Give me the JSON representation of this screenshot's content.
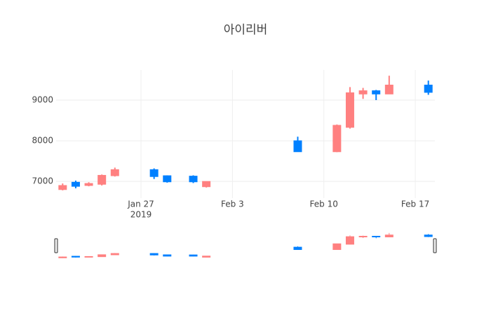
{
  "chart_data": {
    "type": "candlestick",
    "title": "아이리버",
    "x": [
      "2019-01-21",
      "2019-01-22",
      "2019-01-23",
      "2019-01-24",
      "2019-01-25",
      "2019-01-28",
      "2019-01-29",
      "2019-01-31",
      "2019-02-01",
      "2019-02-08",
      "2019-02-11",
      "2019-02-12",
      "2019-02-13",
      "2019-02-14",
      "2019-02-15",
      "2019-02-18"
    ],
    "open": [
      6800,
      6980,
      6900,
      6930,
      7140,
      7290,
      7140,
      7130,
      6870,
      8000,
      7730,
      8330,
      9150,
      9230,
      9150,
      9370
    ],
    "high": [
      6950,
      7020,
      6980,
      7170,
      7340,
      7320,
      7150,
      7150,
      7000,
      8100,
      8400,
      9320,
      9300,
      9250,
      9600,
      9480
    ],
    "low": [
      6780,
      6830,
      6880,
      6900,
      7120,
      7060,
      6970,
      6960,
      6850,
      7730,
      7720,
      8300,
      9030,
      9000,
      9150,
      9130
    ],
    "close": [
      6900,
      6880,
      6950,
      7150,
      7290,
      7120,
      6990,
      6990,
      7000,
      7730,
      8380,
      9180,
      9230,
      9150,
      9370,
      9190
    ],
    "increasing_color": "#ff8080",
    "decreasing_color": "#0080ff",
    "xlim": [
      "2019-01-20T12:00:00Z",
      "2019-02-18T12:00:00Z"
    ],
    "ylim": [
      6590,
      9740
    ],
    "yticks": [
      7000,
      8000,
      9000
    ],
    "xticks": [
      {
        "value": "2019-01-27",
        "label": "Jan 27",
        "sublabel": "2019"
      },
      {
        "value": "2019-02-03",
        "label": "Feb 3"
      },
      {
        "value": "2019-02-10",
        "label": "Feb 10"
      },
      {
        "value": "2019-02-17",
        "label": "Feb 17"
      }
    ],
    "grid": true,
    "rangeslider": true
  }
}
